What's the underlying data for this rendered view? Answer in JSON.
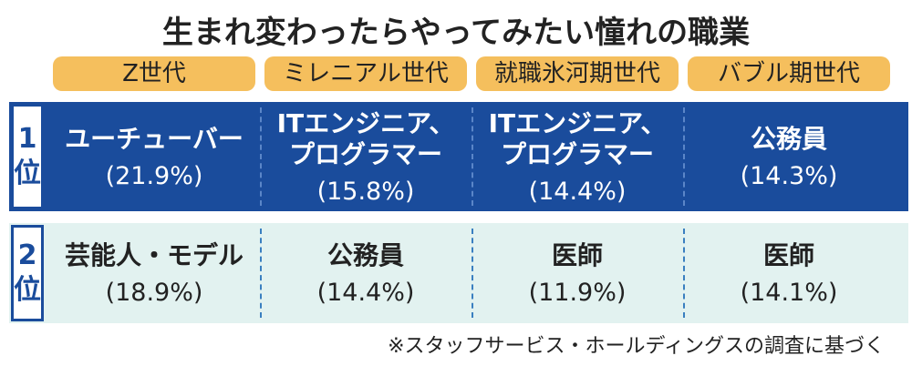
{
  "title": "生まれ変わったらやってみたい憧れの職業",
  "table": {
    "columns": [
      "Z世代",
      "ミレニアル世代",
      "就職氷河期世代",
      "バブル期世代"
    ],
    "rows": [
      {
        "rank": "1位",
        "cells": [
          {
            "job": "ユーチューバー",
            "share": "(21.9%)"
          },
          {
            "job": "ITエンジニア、\nプログラマー",
            "share": "(15.8%)"
          },
          {
            "job": "ITエンジニア、\nプログラマー",
            "share": "(14.4%)"
          },
          {
            "job": "公務員",
            "share": "(14.3%)"
          }
        ]
      },
      {
        "rank": "2位",
        "cells": [
          {
            "job": "芸能人・モデル",
            "share": "(18.9%)"
          },
          {
            "job": "公務員",
            "share": "(14.4%)"
          },
          {
            "job": "医師",
            "share": "(11.9%)"
          },
          {
            "job": "医師",
            "share": "(14.1%)"
          }
        ]
      }
    ]
  },
  "footnote": "※スタッフサービス・ホールディングスの調査に基づく"
}
